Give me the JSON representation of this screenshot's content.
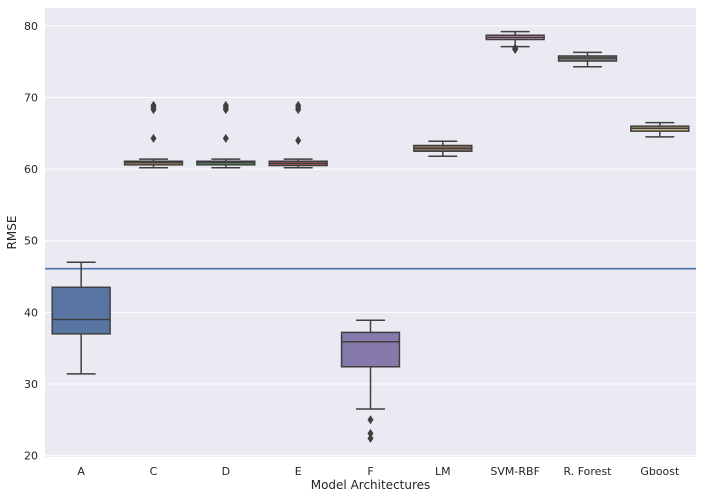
{
  "chart_data": {
    "type": "boxplot",
    "xlabel": "Model Architectures",
    "ylabel": "RMSE",
    "ylim": [
      19.8,
      82.5
    ],
    "yticks": [
      20,
      30,
      40,
      50,
      60,
      70,
      80
    ],
    "grid": true,
    "reference_line": {
      "y": 46.1,
      "color": "#4c72b0"
    },
    "categories": [
      "A",
      "C",
      "D",
      "E",
      "F",
      "LM",
      "SVM-RBF",
      "R. Forest",
      "Gboost"
    ],
    "boxes": [
      {
        "name": "A",
        "whislo": 31.4,
        "q1": 37.0,
        "med": 39.0,
        "q3": 43.5,
        "whishi": 47.0,
        "fliers": [],
        "color": "#5975a4"
      },
      {
        "name": "C",
        "whislo": 60.2,
        "q1": 60.6,
        "med": 60.9,
        "q3": 61.1,
        "whishi": 61.4,
        "fliers": [
          64.3,
          68.3,
          68.6,
          68.9
        ],
        "color": "#cc8963"
      },
      {
        "name": "D",
        "whislo": 60.2,
        "q1": 60.6,
        "med": 60.9,
        "q3": 61.1,
        "whishi": 61.4,
        "fliers": [
          64.3,
          68.3,
          68.6,
          68.9
        ],
        "color": "#5f9e6e"
      },
      {
        "name": "E",
        "whislo": 60.2,
        "q1": 60.5,
        "med": 60.8,
        "q3": 61.1,
        "whishi": 61.4,
        "fliers": [
          64.0,
          68.3,
          68.6,
          68.9
        ],
        "color": "#b55d60"
      },
      {
        "name": "F",
        "whislo": 26.5,
        "q1": 32.4,
        "med": 35.9,
        "q3": 37.2,
        "whishi": 38.9,
        "fliers": [
          25.0,
          23.1,
          22.4
        ],
        "color": "#857aab"
      },
      {
        "name": "LM",
        "whislo": 61.8,
        "q1": 62.5,
        "med": 62.9,
        "q3": 63.3,
        "whishi": 63.9,
        "fliers": [],
        "color": "#8d7866"
      },
      {
        "name": "SVM-RBF",
        "whislo": 77.1,
        "q1": 78.1,
        "med": 78.4,
        "q3": 78.7,
        "whishi": 79.2,
        "fliers": [
          76.7,
          76.9
        ],
        "color": "#d095bf"
      },
      {
        "name": "R. Forest",
        "whislo": 74.3,
        "q1": 75.1,
        "med": 75.5,
        "q3": 75.8,
        "whishi": 76.3,
        "fliers": [],
        "color": "#797979"
      },
      {
        "name": "Gboost",
        "whislo": 64.5,
        "q1": 65.3,
        "med": 65.7,
        "q3": 66.0,
        "whishi": 66.5,
        "fliers": [],
        "color": "#c1b37f"
      }
    ],
    "colors": {
      "background": "#eaeaf2",
      "grid": "#ffffff",
      "line": "#3f3f3f"
    }
  }
}
